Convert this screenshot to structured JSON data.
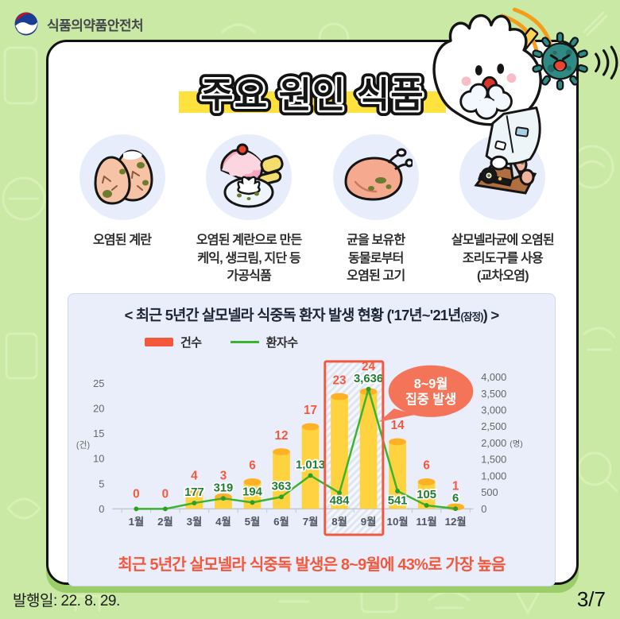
{
  "header": {
    "agency_name": "식품의약품안전처"
  },
  "main_title": "주요 원인 식품",
  "causes": [
    {
      "icon": "contaminated-eggs-icon",
      "caption": "오염된 계란"
    },
    {
      "icon": "egg-processed-foods-icon",
      "caption": "오염된 계란으로 만든\n케익, 생크림, 지단 등\n가공식품"
    },
    {
      "icon": "contaminated-meat-icon",
      "caption": "균을 보유한\n동물로부터\n오염된 고기"
    },
    {
      "icon": "contaminated-utensils-icon",
      "caption": "살모넬라균에 오염된\n조리도구를 사용\n(교차오염)"
    }
  ],
  "chart_data": {
    "type": "bar+line",
    "title": {
      "prefix": "< 최근 5년간 살모넬라 식중독 환자 발생 현황 ('17년~'21년",
      "small": "(잠정)",
      "suffix": ") >"
    },
    "legend": [
      {
        "name": "건수",
        "type": "bar",
        "color": "#f4583c"
      },
      {
        "name": "환자수",
        "type": "line",
        "color": "#3cb32e"
      }
    ],
    "categories": [
      "1월",
      "2월",
      "3월",
      "4월",
      "5월",
      "6월",
      "7월",
      "8월",
      "9월",
      "10월",
      "11월",
      "12월"
    ],
    "series": [
      {
        "name": "건수",
        "type": "bar",
        "values": [
          0,
          0,
          4,
          3,
          6,
          12,
          17,
          23,
          24,
          14,
          6,
          1
        ],
        "bar_color": "#ffd23f",
        "bar_top_color": "#ffb125",
        "label_color": "#f4583c"
      },
      {
        "name": "환자수",
        "type": "line",
        "values": [
          0,
          0,
          177,
          319,
          194,
          363,
          1013,
          484,
          3636,
          541,
          105,
          6
        ],
        "labels": [
          "",
          "",
          "177",
          "319",
          "194",
          "363",
          "1,013",
          "484",
          "3,636",
          "541",
          "105",
          "6"
        ],
        "label_pos": [
          "",
          "",
          "above",
          "above",
          "above",
          "above",
          "above",
          "below",
          "above",
          "below",
          "above",
          "above"
        ],
        "color": "#3cb32e",
        "label_color": "#1e7d32"
      }
    ],
    "left_axis": {
      "ticks": [
        "0",
        "5",
        "10",
        "15",
        "20",
        "25"
      ],
      "max": 25,
      "unit": "(건)"
    },
    "right_axis": {
      "ticks": [
        "0",
        "500",
        "1,000",
        "1,500",
        "2,000",
        "2,500",
        "3,000",
        "3,500",
        "4,000"
      ],
      "max": 4000,
      "unit": "(명)",
      "unit_at_tick": "2,000"
    },
    "highlight": {
      "from_index": 7,
      "to_index": 8,
      "box_color": "#f4583c",
      "bubble_color": "#f4745a",
      "bubble_text_line1": "8~9월",
      "bubble_text_line2": "집중 발생"
    },
    "note": "최근 5년간 살모넬라 식중독 발생은 8~9월에 43%로 가장 높음"
  },
  "footer": {
    "publish_date": "발행일: 22. 8. 29.",
    "page": "3/7"
  }
}
